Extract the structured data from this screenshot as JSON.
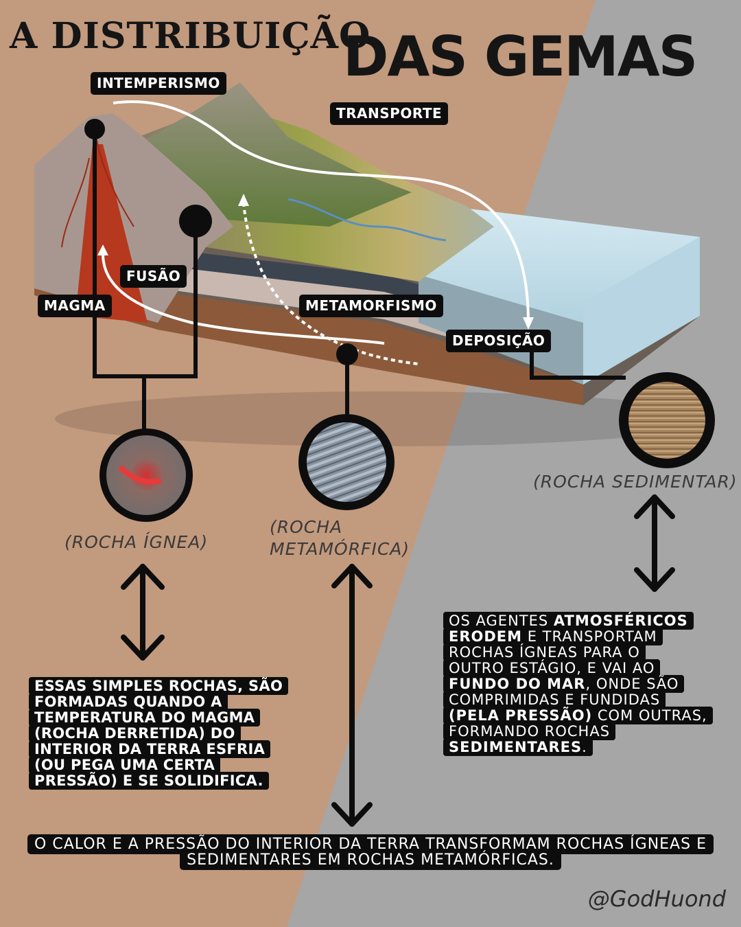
{
  "title": {
    "line1": "A DISTRIBUIÇÃO",
    "line2": "DAS GEMAS"
  },
  "process_labels": {
    "intemperismo": "INTEMPERISMO",
    "transporte": "TRANSPORTE",
    "fusao": "FUSÃO",
    "magma": "MAGMA",
    "metamorfismo": "METAMORFISMO",
    "deposicao": "DEPOSIÇÃO"
  },
  "rock_labels": {
    "ignea": "(ROCHA ÍGNEA)",
    "metamorfica_1": "(ROCHA",
    "metamorfica_2": "METAMÓRFICA)",
    "sedimentar": "(ROCHA SEDIMENTAR)"
  },
  "igneous_text": [
    "ESSAS SIMPLES ROCHAS, SÃO",
    "FORMADAS QUANDO A",
    "TEMPERATURA DO MAGMA",
    "(ROCHA DERRETIDA) DO",
    "INTERIOR DA TERRA ESFRIA",
    "(OU PEGA UMA CERTA",
    "PRESSÃO) E SE SOLIDIFICA."
  ],
  "sedimentary_text": {
    "l1a": "OS AGENTES ",
    "l1b": "ATMOSFÉRICOS",
    "l2a": "ERODEM",
    "l2b": " E TRANSPORTAM",
    "l3": "ROCHAS ÍGNEAS PARA O",
    "l4": "OUTRO ESTÁGIO, E VAI AO",
    "l5a": "FUNDO DO MAR",
    "l5b": ", ONDE SÃO",
    "l6": "COMPRIMIDAS E FUNDIDAS",
    "l7a": "(PELA PRESSÃO)",
    "l7b": " COM OUTRAS,",
    "l8": "FORMANDO ROCHAS",
    "l9a": "SEDIMENTARES",
    "l9b": "."
  },
  "bottom_text": {
    "line1": "O CALOR E A PRESSÃO DO INTERIOR DA TERRA TRANSFORMAM ROCHAS ÍGNEAS E",
    "line2": "SEDIMENTARES EM ROCHAS METAMÓRFICAS."
  },
  "credit": "@GodHuond",
  "colors": {
    "tan": "#c29a7e",
    "gray": "#a6a6a6",
    "label_bg": "#0d0d0d",
    "line": "#0d0d0d"
  }
}
